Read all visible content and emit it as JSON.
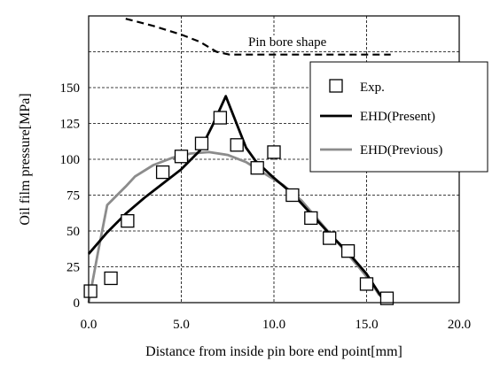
{
  "chart_data": {
    "type": "scatter",
    "xlabel": "Distance from inside pin bore end point[mm]",
    "ylabel": "Oil film pressure[MPa]",
    "xlim": [
      0,
      20
    ],
    "ylim": [
      0,
      200
    ],
    "x_ticks": [
      "0.0",
      "5.0",
      "10.0",
      "15.0",
      "20.0"
    ],
    "y_ticks": [
      "0",
      "25",
      "50",
      "75",
      "100",
      "125",
      "150"
    ],
    "grid": true,
    "legend_position": "top-right",
    "annotation": "Pin bore shape",
    "series": [
      {
        "name": "Exp.",
        "kind": "markers",
        "marker": "open-square",
        "color": "#000000",
        "x": [
          0.1,
          1.2,
          2.1,
          4.0,
          5.0,
          6.1,
          7.1,
          8.0,
          9.1,
          10.0,
          11.0,
          12.0,
          13.0,
          14.0,
          15.0,
          16.1
        ],
        "y": [
          8,
          17,
          57,
          91,
          102,
          111,
          129,
          110,
          94,
          105,
          75,
          59,
          45,
          36,
          13,
          3
        ]
      },
      {
        "name": "EHD(Present)",
        "kind": "line",
        "color": "#000000",
        "x": [
          0.0,
          1.0,
          2.0,
          3.0,
          4.0,
          5.0,
          6.0,
          6.7,
          7.4,
          8.5,
          9.0,
          10.0,
          11.0,
          12.0,
          13.0,
          14.0,
          15.0,
          15.5,
          16.0
        ],
        "y": [
          34,
          49,
          62,
          73,
          83,
          93,
          106,
          124,
          144,
          108,
          99,
          87,
          76,
          62,
          48,
          35,
          20,
          10,
          0
        ]
      },
      {
        "name": "EHD(Previous)",
        "kind": "line",
        "color": "#8c8c8c",
        "x": [
          0.0,
          0.5,
          1.0,
          2.0,
          2.5,
          3.5,
          4.5,
          5.5,
          6.5,
          7.5,
          8.5,
          9.5,
          10.5,
          11.5,
          12.5,
          13.5,
          14.5,
          15.2,
          15.7
        ],
        "y": [
          0,
          35,
          68,
          81,
          88,
          96,
          101,
          104,
          105,
          103,
          98,
          90,
          82,
          71,
          56,
          41,
          26,
          15,
          5
        ]
      },
      {
        "kind": "line",
        "style": "dashed",
        "color": "#000000",
        "x": [
          2.0,
          3.5,
          5.0,
          6.0,
          6.9,
          7.6,
          9.0,
          12.0,
          15.0,
          16.3
        ],
        "y": [
          198,
          193,
          187,
          182,
          175,
          173,
          173,
          173,
          173,
          173
        ]
      }
    ]
  }
}
